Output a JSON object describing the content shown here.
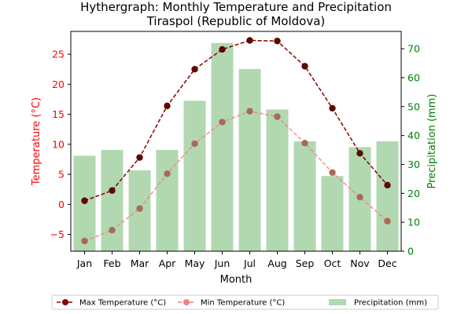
{
  "chart_data": {
    "type": "bar+line",
    "title_line1": "Hythergraph: Monthly Temperature and Precipitation",
    "title_line2": "Tiraspol (Republic of Moldova)",
    "xlabel": "Month",
    "ylabel_left": "Temperature (°C)",
    "ylabel_right": "Precipitation (mm)",
    "categories": [
      "Jan",
      "Feb",
      "Mar",
      "Apr",
      "May",
      "Jun",
      "Jul",
      "Aug",
      "Sep",
      "Oct",
      "Nov",
      "Dec"
    ],
    "ylim_left": [
      -7.8,
      28.8
    ],
    "ylim_right": [
      0,
      76
    ],
    "yticks_left": [
      -5,
      0,
      5,
      10,
      15,
      20,
      25
    ],
    "yticks_right": [
      0,
      10,
      20,
      30,
      40,
      50,
      60,
      70
    ],
    "grid": false,
    "legend_placement": "bottom-center",
    "series": [
      {
        "name": "Max Temperature (°C)",
        "kind": "line",
        "axis": "left",
        "color": "#8b0000",
        "values": [
          0.6,
          2.3,
          7.8,
          16.4,
          22.5,
          25.8,
          27.3,
          27.2,
          23.0,
          16.0,
          8.5,
          3.2
        ]
      },
      {
        "name": "Min Temperature (°C)",
        "kind": "line",
        "axis": "left",
        "color": "#f08080",
        "values": [
          -6.1,
          -4.3,
          -0.7,
          5.1,
          10.1,
          13.7,
          15.5,
          14.6,
          10.2,
          5.3,
          1.2,
          -2.8
        ]
      },
      {
        "name": "Precipitation (mm)",
        "kind": "bar",
        "axis": "right",
        "color": "#b2d8b2",
        "values": [
          33,
          35,
          28,
          35,
          52,
          72,
          63,
          49,
          38,
          26,
          36,
          38
        ]
      }
    ],
    "colors": {
      "left_axis": "#ff0000",
      "right_axis": "#008000"
    }
  }
}
